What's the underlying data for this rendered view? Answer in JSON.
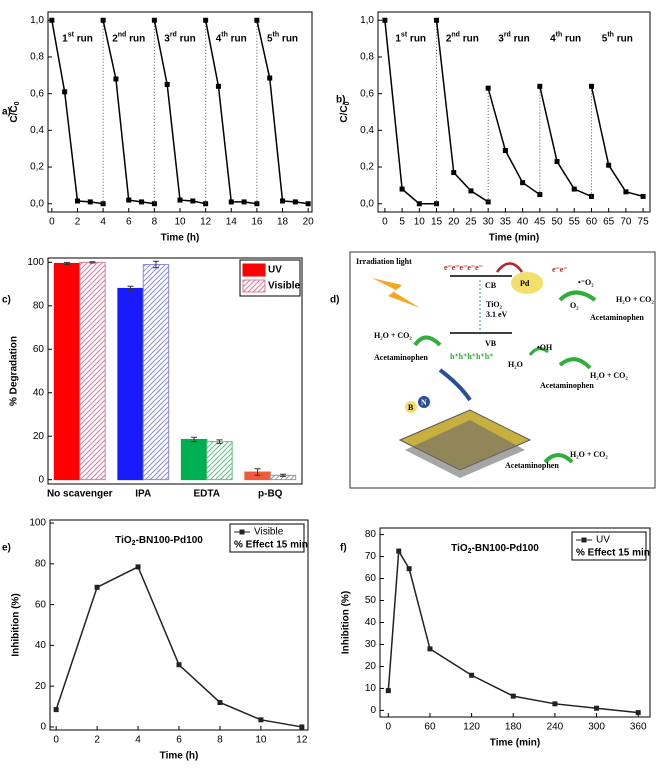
{
  "chart_data": [
    {
      "type": "line",
      "panel": "a)",
      "xlabel": "Time (h)",
      "ylabel": [
        "C/C",
        "0"
      ],
      "xlim": [
        -0.3,
        20.3
      ],
      "ylim": [
        -0.045,
        1.045
      ],
      "xticks": [
        0,
        2,
        4,
        6,
        8,
        10,
        12,
        14,
        16,
        18,
        20
      ],
      "yticks": [
        {
          "value": 0,
          "label": "0,0"
        },
        {
          "value": 0.2,
          "label": "0,2"
        },
        {
          "value": 0.4,
          "label": "0,4"
        },
        {
          "value": 0.6,
          "label": "0,6"
        },
        {
          "value": 0.8,
          "label": "0,8"
        },
        {
          "value": 1.0,
          "label": "1,0"
        }
      ],
      "separators": true,
      "series": [
        {
          "label": [
            "1",
            "st",
            " run"
          ],
          "color": "#000000",
          "x": [
            0,
            1,
            2,
            3,
            4
          ],
          "values": [
            1.0,
            0.61,
            0.015,
            0.01,
            0.0
          ]
        },
        {
          "label": [
            "2",
            "nd",
            " run"
          ],
          "color": "#000000",
          "x": [
            4,
            5,
            6,
            7,
            8
          ],
          "values": [
            1.0,
            0.68,
            0.02,
            0.01,
            0.0
          ]
        },
        {
          "label": [
            "3",
            "rd",
            " run"
          ],
          "color": "#000000",
          "x": [
            8,
            9,
            10,
            11,
            12
          ],
          "values": [
            1.0,
            0.65,
            0.02,
            0.015,
            0.0
          ]
        },
        {
          "label": [
            "4",
            "th",
            " run"
          ],
          "color": "#000000",
          "x": [
            12,
            13,
            14,
            15,
            16
          ],
          "values": [
            1.0,
            0.64,
            0.01,
            0.01,
            0.0
          ]
        },
        {
          "label": [
            "5",
            "th",
            " run"
          ],
          "color": "#000000",
          "x": [
            16,
            17,
            18,
            19,
            20
          ],
          "values": [
            1.0,
            0.685,
            0.015,
            0.01,
            0.0
          ]
        }
      ]
    },
    {
      "type": "line",
      "panel": "b)",
      "xlabel": "Time (min)",
      "ylabel": [
        "C/C",
        "0"
      ],
      "xlim": [
        -2,
        77
      ],
      "ylim": [
        -0.045,
        1.045
      ],
      "xticks": [
        0,
        5,
        10,
        15,
        20,
        25,
        30,
        35,
        40,
        45,
        50,
        55,
        60,
        65,
        70,
        75
      ],
      "yticks": [
        {
          "value": 0,
          "label": "0,0"
        },
        {
          "value": 0.2,
          "label": "0,2"
        },
        {
          "value": 0.4,
          "label": "0,4"
        },
        {
          "value": 0.6,
          "label": "0,6"
        },
        {
          "value": 0.8,
          "label": "0,8"
        },
        {
          "value": 1.0,
          "label": "1,0"
        }
      ],
      "separators": true,
      "series": [
        {
          "label": [
            "1",
            "st",
            " run"
          ],
          "color": "#000000",
          "x": [
            0,
            5,
            10,
            15
          ],
          "values": [
            1.0,
            0.08,
            0.0,
            0.0
          ]
        },
        {
          "label": [
            "2",
            "nd",
            " run"
          ],
          "color": "#000000",
          "x": [
            15,
            20,
            25,
            30
          ],
          "values": [
            1.0,
            0.17,
            0.07,
            0.01
          ]
        },
        {
          "label": [
            "3",
            "rd",
            " run"
          ],
          "color": "#000000",
          "x": [
            30,
            35,
            40,
            45
          ],
          "values": [
            0.63,
            0.29,
            0.115,
            0.05
          ]
        },
        {
          "label": [
            "4",
            "th",
            " run"
          ],
          "color": "#000000",
          "x": [
            45,
            50,
            55,
            60
          ],
          "values": [
            0.64,
            0.23,
            0.08,
            0.04
          ]
        },
        {
          "label": [
            "5",
            "th",
            " run"
          ],
          "color": "#000000",
          "x": [
            60,
            65,
            70,
            75
          ],
          "values": [
            0.64,
            0.21,
            0.065,
            0.04
          ]
        }
      ]
    },
    {
      "type": "bar",
      "panel": "c)",
      "ylabel": "% Degradation",
      "categories": [
        "No scavenger",
        "IPA",
        "EDTA",
        "p-BQ"
      ],
      "ylim": [
        -2,
        102
      ],
      "yticks": [
        0,
        20,
        40,
        60,
        80,
        100
      ],
      "legend": "upper right",
      "series": [
        {
          "name": "UV",
          "color": "#ff0000",
          "hatch": false,
          "colors": [
            "#ff0000",
            "#1a1aff",
            "#00b050",
            "#f05a3c"
          ],
          "values": [
            99.5,
            88,
            18.5,
            3.5
          ],
          "errors": [
            0.5,
            1,
            1,
            1.5
          ]
        },
        {
          "name": "Visible",
          "color": "#e07a98",
          "hatch": true,
          "colors": [
            "#e07a98",
            "#8a8ae0",
            "#5fbf80",
            "#999999"
          ],
          "values": [
            100,
            99,
            17.5,
            2
          ],
          "errors": [
            0.3,
            1.5,
            0.8,
            0.5
          ]
        }
      ]
    },
    {
      "type": "line",
      "panel": "e)",
      "title": [
        "TiO",
        "2",
        "-BN100-Pd100"
      ],
      "xlabel": "Time (h)",
      "ylabel": "Inhibition (%)",
      "xlim": [
        -0.3,
        12.3
      ],
      "ylim": [
        -1.5,
        101.5
      ],
      "xticks": [
        0,
        2,
        4,
        6,
        8,
        10,
        12
      ],
      "yticks": [
        0,
        20,
        40,
        60,
        80,
        100
      ],
      "legend": "upper right",
      "legend_note": "% Effect 15 min",
      "series": [
        {
          "name": "Visible",
          "color": "#222222",
          "x": [
            0,
            2,
            4,
            6,
            8,
            10,
            12
          ],
          "values": [
            8.5,
            68.5,
            78.5,
            30.5,
            12,
            3.5,
            0
          ]
        }
      ]
    },
    {
      "type": "line",
      "panel": "f)",
      "title": [
        "TiO",
        "2",
        "-BN100-Pd100"
      ],
      "xlabel": "Time (min)",
      "ylabel": "Inhibition (%)",
      "xlim": [
        -12,
        377
      ],
      "ylim": [
        -3,
        83
      ],
      "xticks": [
        0,
        60,
        120,
        180,
        240,
        300,
        360
      ],
      "yticks": [
        0,
        10,
        20,
        30,
        40,
        50,
        60,
        70,
        80
      ],
      "legend": "upper right",
      "legend_note": "% Effect 15 min",
      "series": [
        {
          "name": "UV",
          "color": "#222222",
          "x": [
            0,
            15,
            30,
            60,
            120,
            180,
            240,
            300,
            360
          ],
          "values": [
            9,
            72.5,
            64.5,
            28,
            16,
            6.5,
            3,
            1,
            -1
          ]
        }
      ]
    }
  ],
  "diagram": {
    "panel": "d)",
    "labels": [
      "Irradiation light",
      "e⁻e⁻e⁻e⁻e⁻",
      "CB",
      "Pd",
      "e⁻e⁻",
      "•⁻O₂",
      "O₂",
      "Acetaminophen",
      "H₂O + CO₂",
      "TiO₂",
      "3.1 eV",
      "H₂O + CO₂",
      "VB",
      "h⁺h⁺h⁺h⁺h⁺",
      "Acetaminophen",
      "•OH",
      "H₂O",
      "Acetaminophen",
      "H₂O + CO₂",
      "B",
      "N",
      "Acetaminophen",
      "H₂O + CO₂"
    ]
  }
}
